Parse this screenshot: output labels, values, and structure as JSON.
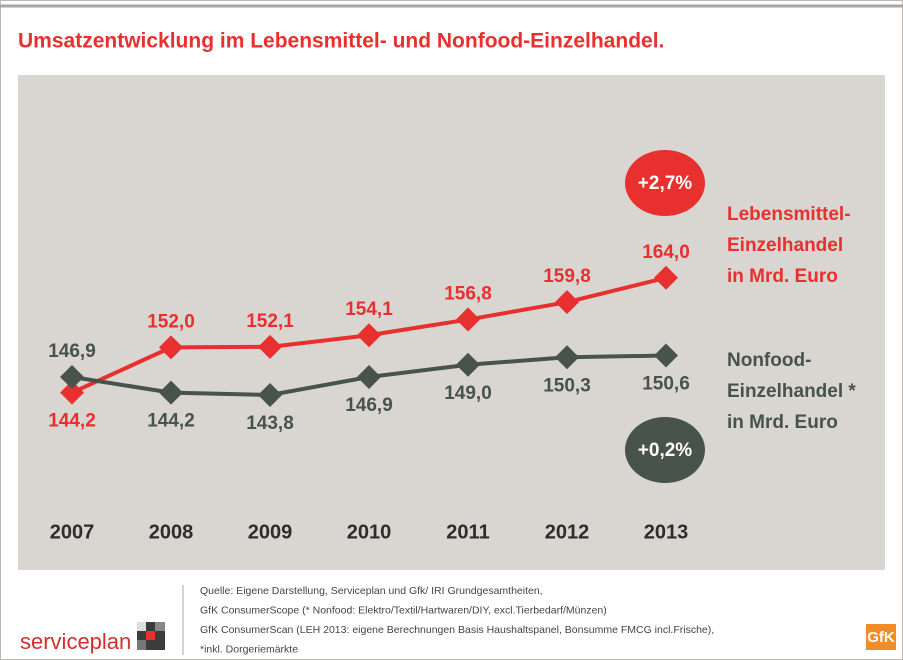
{
  "chart_data": {
    "type": "line",
    "title": "Umsatzentwicklung im Lebensmittel- und Nonfood-Einzelhandel.",
    "categories": [
      "2007",
      "2008",
      "2009",
      "2010",
      "2011",
      "2012",
      "2013"
    ],
    "ylim": [
      130,
      175
    ],
    "series": [
      {
        "name": [
          "Lebensmittel-",
          "Einzelhandel",
          "in Mrd. Euro"
        ],
        "color": "#e8302e",
        "values": [
          144.2,
          152.0,
          152.1,
          154.1,
          156.8,
          159.8,
          164.0
        ],
        "value_labels": [
          "144,2",
          "152,0",
          "152,1",
          "154,1",
          "156,8",
          "159,8",
          "164,0"
        ],
        "change_label": "+2,7%"
      },
      {
        "name": [
          "Nonfood-",
          "Einzelhandel *",
          "in Mrd. Euro"
        ],
        "color": "#48534d",
        "values": [
          146.9,
          144.2,
          143.8,
          146.9,
          149.0,
          150.3,
          150.6
        ],
        "value_labels": [
          "146,9",
          "144,2",
          "143,8",
          "146,9",
          "149,0",
          "150,3",
          "150,6"
        ],
        "change_label": "+0,2%"
      }
    ],
    "source": [
      "Quelle: Eigene Darstellung, Serviceplan und Gfk/ IRI Grundgesamtheiten,",
      "GfK ConsumerScope (* Nonfood: Elektro/Textil/Hartwaren/DIY, excl.Tierbedarf/Münzen)",
      "GfK ConsumerScan   (LEH 2013: eigene Berechnungen Basis Haushaltspanel, Bonsumme FMCG incl.Frische),",
      "*inkl. Dorgeriemärkte"
    ],
    "logos": [
      "serviceplan",
      "GfK"
    ]
  }
}
